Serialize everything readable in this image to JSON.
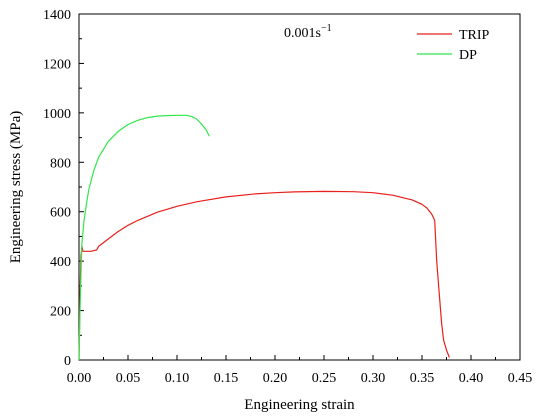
{
  "chart_data": {
    "type": "line",
    "title": "",
    "annotation": {
      "base": "0.001s",
      "superscript": "−1"
    },
    "xlabel": "Engineering strain",
    "ylabel": "Engineering stress (MPa)",
    "xlim": [
      0.0,
      0.45
    ],
    "ylim": [
      0,
      1400
    ],
    "x_ticks": [
      0.0,
      0.05,
      0.1,
      0.15,
      0.2,
      0.25,
      0.3,
      0.35,
      0.4,
      0.45
    ],
    "x_tick_labels": [
      "0.00",
      "0.05",
      "0.10",
      "0.15",
      "0.20",
      "0.25",
      "0.30",
      "0.35",
      "0.40",
      "0.45"
    ],
    "y_ticks": [
      0,
      200,
      400,
      600,
      800,
      1000,
      1200,
      1400
    ],
    "y_tick_labels": [
      "0",
      "200",
      "400",
      "600",
      "800",
      "1000",
      "1200",
      "1400"
    ],
    "grid": false,
    "legend": "top-right",
    "series": [
      {
        "name": "TRIP",
        "color": "#e8201c",
        "x": [
          0.0,
          0.001,
          0.002,
          0.003,
          0.004,
          0.006,
          0.008,
          0.012,
          0.018,
          0.02,
          0.025,
          0.03,
          0.04,
          0.05,
          0.06,
          0.08,
          0.1,
          0.12,
          0.15,
          0.18,
          0.2,
          0.22,
          0.25,
          0.28,
          0.3,
          0.32,
          0.34,
          0.35,
          0.355,
          0.36,
          0.363,
          0.365,
          0.368,
          0.37,
          0.372,
          0.375,
          0.378
        ],
        "y": [
          0,
          250,
          420,
          460,
          440,
          440,
          440,
          440,
          445,
          460,
          475,
          490,
          520,
          545,
          565,
          598,
          622,
          640,
          660,
          672,
          677,
          680,
          682,
          681,
          677,
          667,
          648,
          630,
          615,
          590,
          565,
          400,
          250,
          150,
          80,
          40,
          10
        ]
      },
      {
        "name": "DP",
        "color": "#2ee84a",
        "x": [
          0.0,
          0.001,
          0.002,
          0.003,
          0.005,
          0.008,
          0.01,
          0.015,
          0.02,
          0.03,
          0.04,
          0.05,
          0.06,
          0.07,
          0.08,
          0.09,
          0.1,
          0.11,
          0.115,
          0.12,
          0.125,
          0.13,
          0.133
        ],
        "y": [
          0,
          200,
          350,
          470,
          560,
          640,
          690,
          765,
          820,
          885,
          925,
          953,
          970,
          981,
          987,
          989,
          990,
          990,
          985,
          975,
          955,
          930,
          905
        ]
      }
    ]
  }
}
